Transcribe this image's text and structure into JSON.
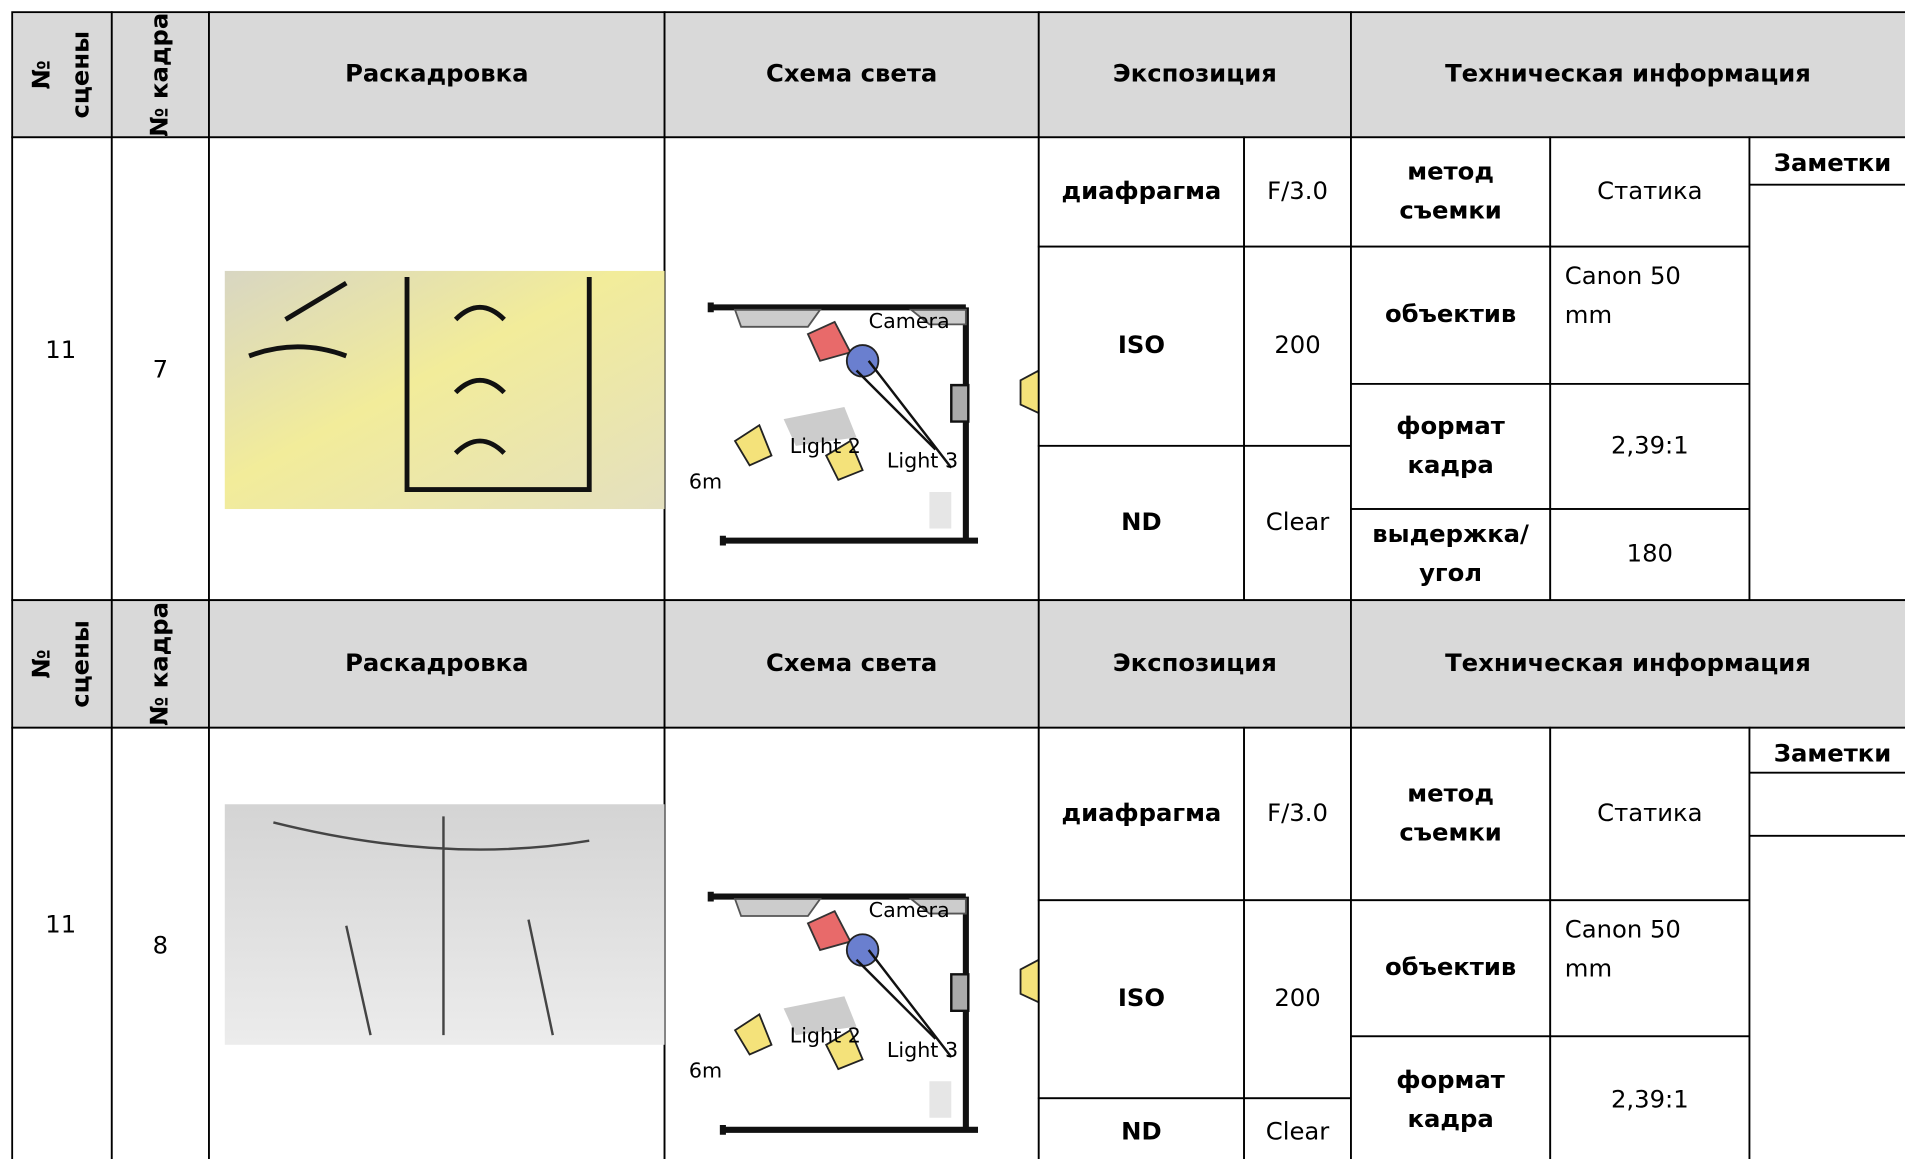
{
  "blocks": [
    {
      "header": {
        "scene": "№ сцены",
        "shot": "№ кадра",
        "storyboard": "Раскадровка",
        "light_scheme": "Схема света",
        "exposure": "Экспозиция",
        "tech": "Техническая информация"
      },
      "scene": "11",
      "shot": "7",
      "exposure": [
        {
          "label": "диафрагма",
          "value": "F/3.0"
        },
        {
          "label": "ISO",
          "value": "200"
        },
        {
          "label": "ND",
          "value": "Clear"
        }
      ],
      "tech": [
        {
          "label": "метод съемки",
          "value": "Статика"
        },
        {
          "label": "объектив",
          "value": "Canon 50 mm"
        },
        {
          "label": "формат кадра",
          "value": "2,39:1"
        },
        {
          "label": "выдержка/ угол",
          "value": "180"
        }
      ],
      "notes": "Заметки",
      "light_labels": [
        "Camera",
        "Light 2",
        "Light 3",
        "6m"
      ]
    },
    {
      "header": {
        "scene": "№ сцены",
        "shot": "№ кадра",
        "storyboard": "Раскадровка",
        "light_scheme": "Схема света",
        "exposure": "Экспозиция",
        "tech": "Техническая информация"
      },
      "scene": "11",
      "shot": "8",
      "exposure": [
        {
          "label": "диафрагма",
          "value": "F/3.0"
        },
        {
          "label": "ISO",
          "value": "200"
        },
        {
          "label": "ND",
          "value": "Clear"
        }
      ],
      "tech": [
        {
          "label": "метод съемки",
          "value": "Статика"
        },
        {
          "label": "объектив",
          "value": "Canon 50 mm"
        },
        {
          "label": "формат кадра",
          "value": "2,39:1"
        }
      ],
      "notes": "Заметки",
      "light_labels": [
        "Camera",
        "Light 2",
        "Light 3",
        "6m"
      ]
    }
  ]
}
